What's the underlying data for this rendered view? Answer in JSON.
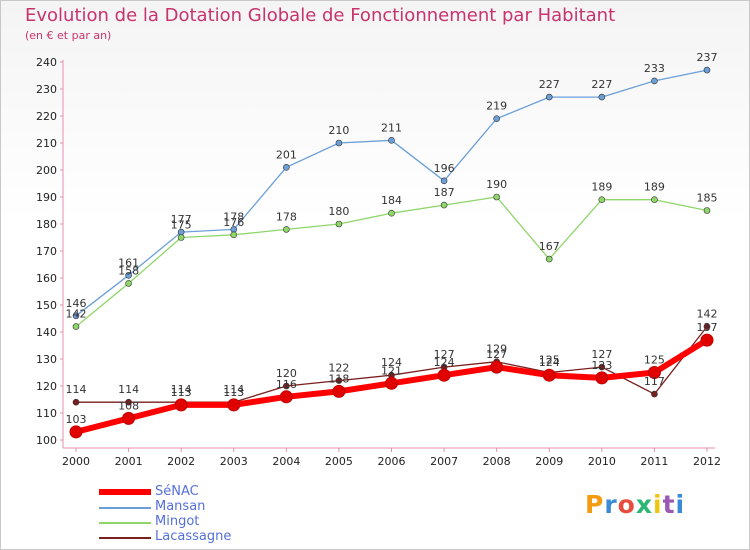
{
  "header": {
    "title": "Evolution de la Dotation Globale de Fonctionnement par Habitant",
    "subtitle": "(en € et par an)"
  },
  "logo": {
    "text": "Proxiti",
    "colors": [
      "#f39c12",
      "#3a8ad8",
      "#e84c3d",
      "#2bb673",
      "#f1c40f",
      "#9b59b6",
      "#3a8ad8"
    ]
  },
  "chart_data": {
    "type": "line",
    "title": "Evolution de la Dotation Globale de Fonctionnement par Habitant",
    "subtitle": "(en € et par an)",
    "xlabel": "",
    "ylabel": "",
    "x": [
      2000,
      2001,
      2002,
      2003,
      2004,
      2005,
      2006,
      2007,
      2008,
      2009,
      2010,
      2011,
      2012
    ],
    "ylim": [
      100,
      240
    ],
    "yticks": [
      100,
      110,
      120,
      130,
      140,
      150,
      160,
      170,
      180,
      190,
      200,
      210,
      220,
      230,
      240
    ],
    "grid": false,
    "legend": "bottom-left",
    "series": [
      {
        "name": "SéNAC",
        "color": "#ff0000",
        "values": [
          103,
          108,
          113,
          113,
          116,
          118,
          121,
          124,
          127,
          124,
          123,
          125,
          137
        ]
      },
      {
        "name": "Mansan",
        "color": "#6b9fd8",
        "values": [
          146,
          161,
          177,
          178,
          201,
          210,
          211,
          196,
          219,
          227,
          227,
          233,
          237
        ]
      },
      {
        "name": "Mingot",
        "color": "#8fd66a",
        "values": [
          142,
          158,
          175,
          176,
          178,
          180,
          184,
          187,
          190,
          167,
          189,
          189,
          185
        ]
      },
      {
        "name": "Lacassagne",
        "color": "#7a1f1f",
        "values": [
          114,
          114,
          114,
          114,
          120,
          122,
          124,
          127,
          129,
          125,
          127,
          117,
          142
        ]
      }
    ]
  }
}
